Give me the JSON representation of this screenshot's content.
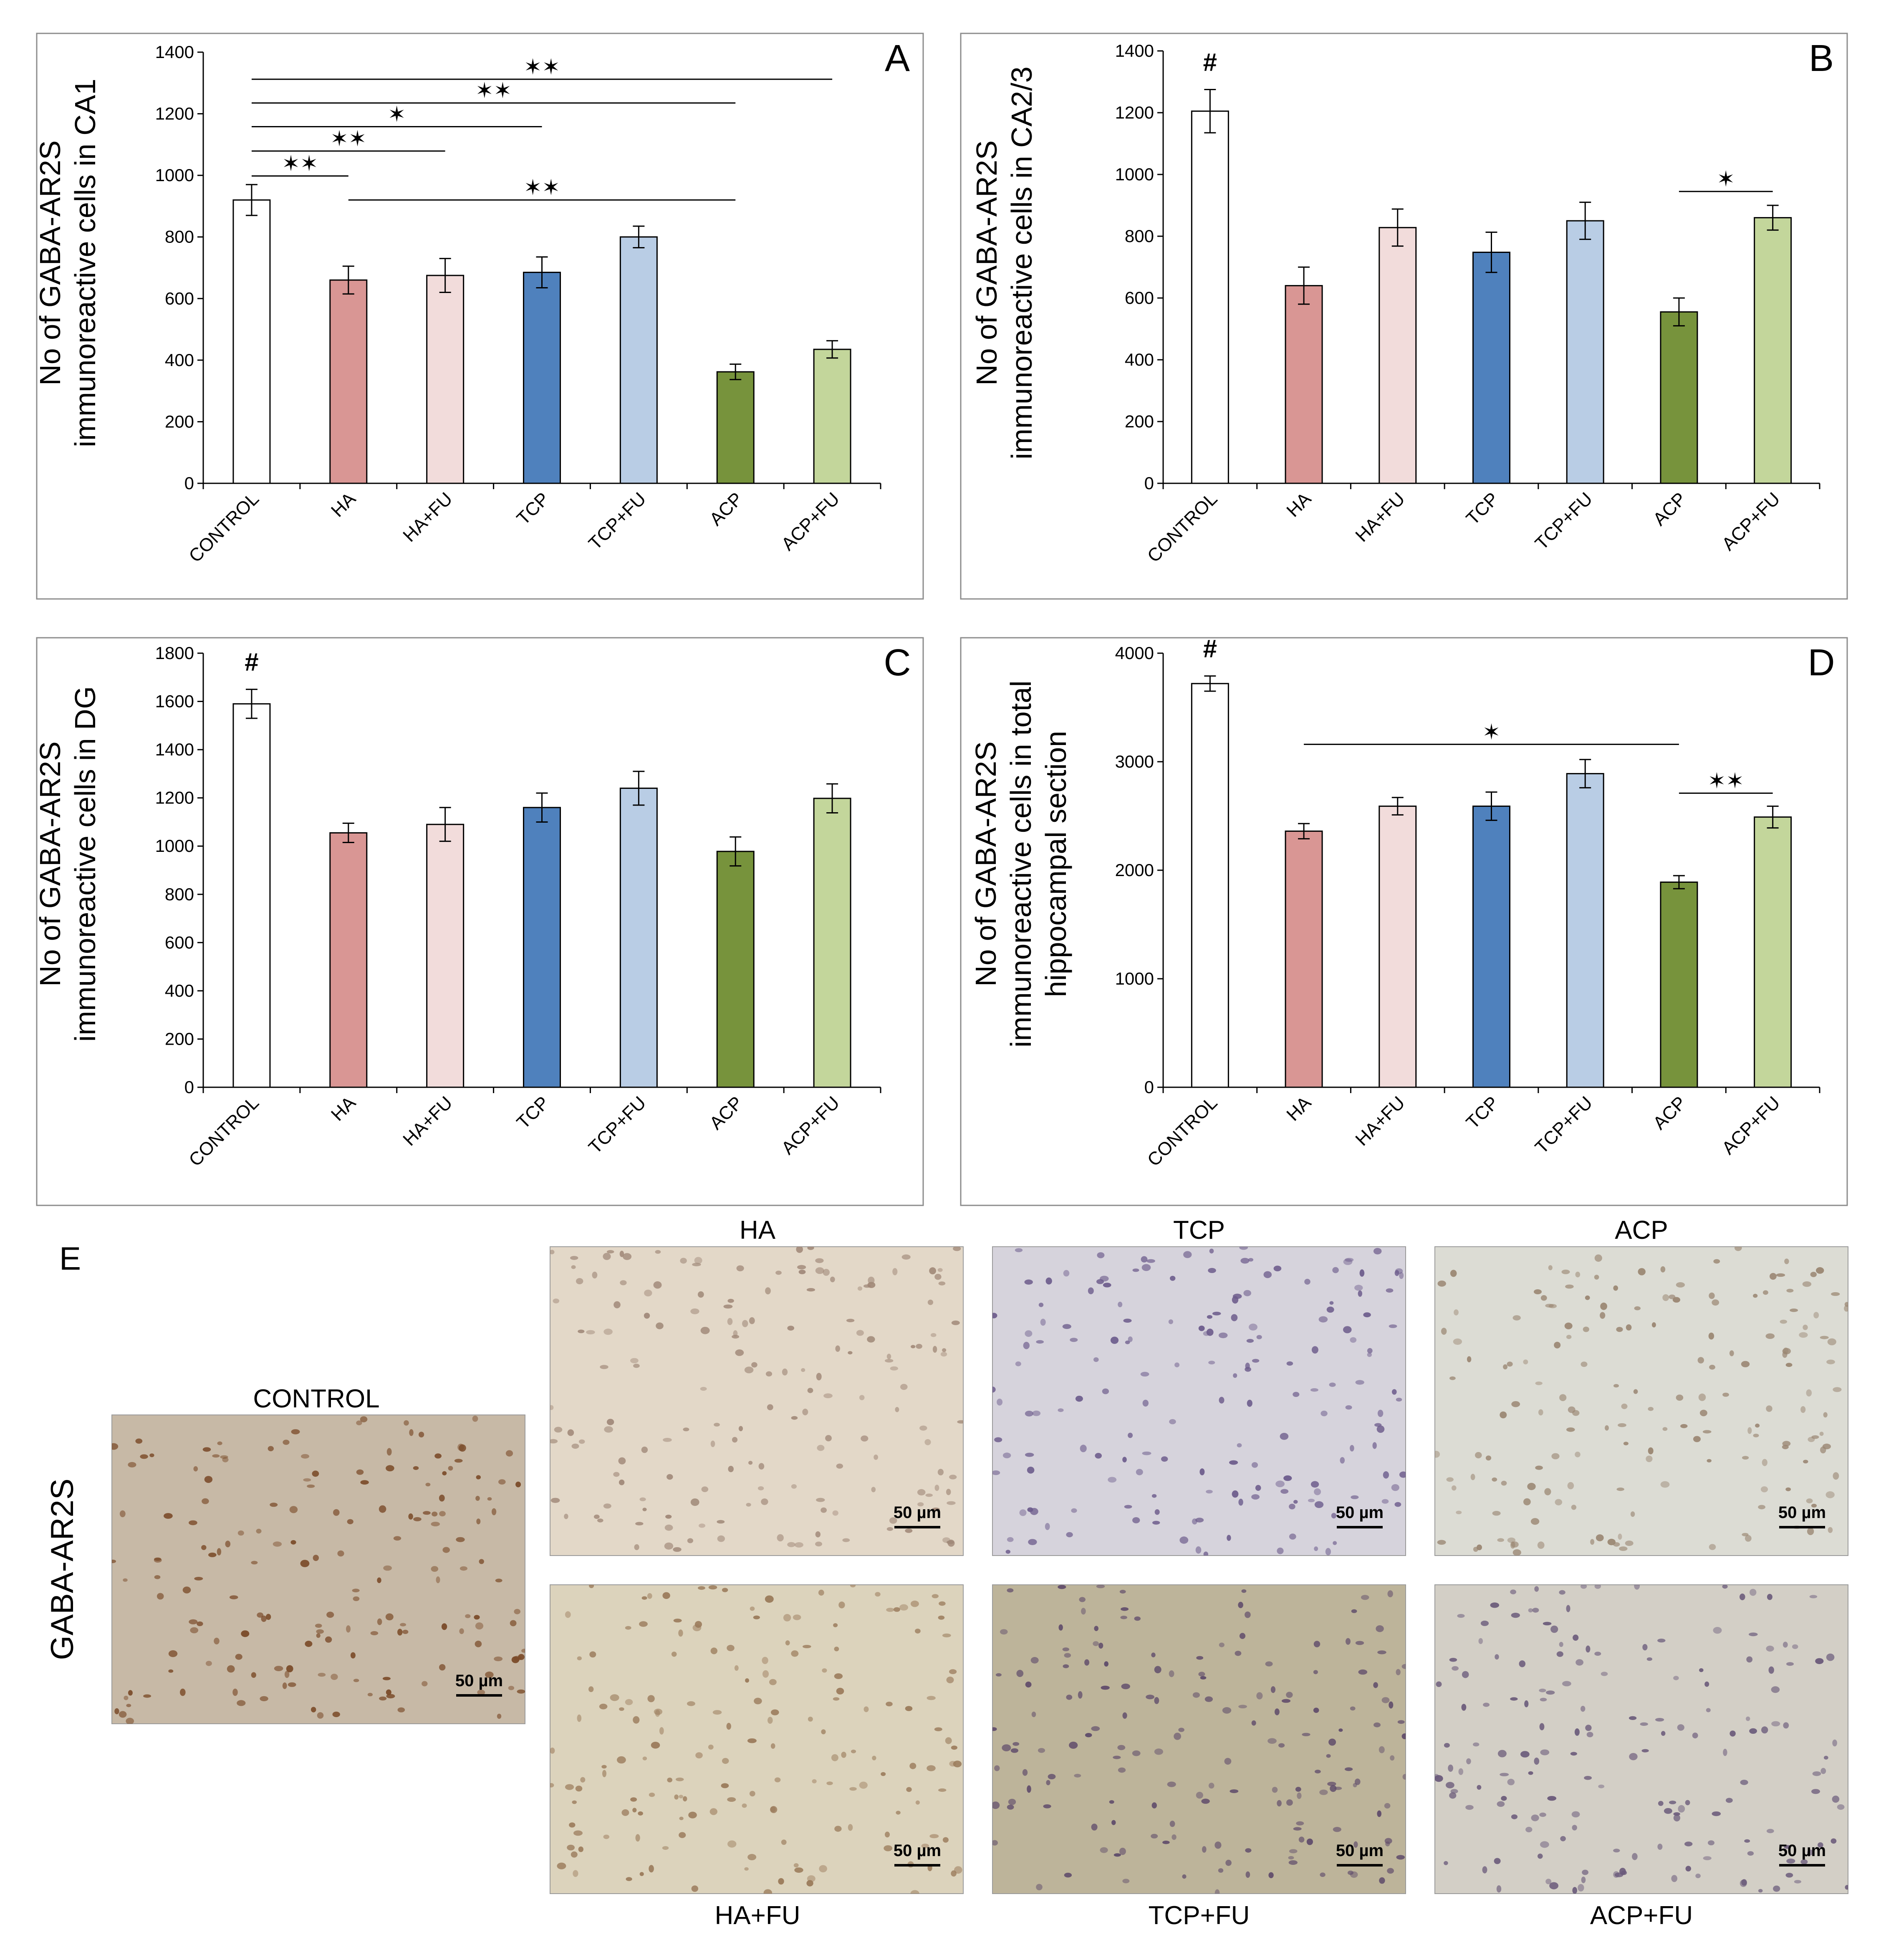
{
  "chart_data": [
    {
      "panel": "A",
      "type": "bar",
      "ylabel_lines": [
        "No of GABA-AR2S",
        "immunoreactive cells in CA1"
      ],
      "categories": [
        "CONTROL",
        "HA",
        "HA+FU",
        "TCP",
        "TCP+FU",
        "ACP",
        "ACP+FU"
      ],
      "values": [
        920,
        660,
        675,
        685,
        800,
        362,
        435
      ],
      "errors": [
        50,
        45,
        55,
        50,
        35,
        25,
        28
      ],
      "yticks": [
        "0",
        "200",
        "400",
        "600",
        "800",
        "1000",
        "1200",
        "1400"
      ],
      "ylim": [
        0,
        1400
      ],
      "grid": false,
      "annotations": [
        {
          "label": "✶✶",
          "from": "CONTROL",
          "to": "ACP+FU",
          "y": 1312
        },
        {
          "label": "✶✶",
          "from": "CONTROL",
          "to": "ACP",
          "y": 1235
        },
        {
          "label": "✶",
          "from": "CONTROL",
          "to": "TCP",
          "y": 1158
        },
        {
          "label": "✶✶",
          "from": "CONTROL",
          "to": "HA+FU",
          "y": 1079
        },
        {
          "label": "✶✶",
          "from": "CONTROL",
          "to": "HA",
          "y": 998
        },
        {
          "label": "✶✶",
          "from": "HA",
          "to": "ACP",
          "y": 920
        }
      ]
    },
    {
      "panel": "B",
      "type": "bar",
      "ylabel_lines": [
        "No of GABA-AR2S",
        "immunoreactive cells in CA2/3"
      ],
      "categories": [
        "CONTROL",
        "HA",
        "HA+FU",
        "TCP",
        "TCP+FU",
        "ACP",
        "ACP+FU"
      ],
      "values": [
        1205,
        640,
        828,
        748,
        850,
        555,
        860
      ],
      "errors": [
        70,
        60,
        60,
        65,
        60,
        45,
        40
      ],
      "yticks": [
        "0",
        "200",
        "400",
        "600",
        "800",
        "1000",
        "1200",
        "1400"
      ],
      "ylim": [
        0,
        1400
      ],
      "grid": false,
      "markers": [
        {
          "label": "#",
          "at": "CONTROL"
        }
      ],
      "annotations": [
        {
          "label": "✶",
          "from": "ACP",
          "to": "ACP+FU",
          "y": 945
        }
      ]
    },
    {
      "panel": "C",
      "type": "bar",
      "ylabel_lines": [
        "No of GABA-AR2S",
        "immunoreactive cells in DG"
      ],
      "categories": [
        "CONTROL",
        "HA",
        "HA+FU",
        "TCP",
        "TCP+FU",
        "ACP",
        "ACP+FU"
      ],
      "values": [
        1590,
        1055,
        1090,
        1160,
        1240,
        978,
        1198
      ],
      "errors": [
        60,
        40,
        70,
        60,
        70,
        60,
        60
      ],
      "yticks": [
        "0",
        "200",
        "400",
        "600",
        "800",
        "1000",
        "1200",
        "1400",
        "1600",
        "1800"
      ],
      "ylim": [
        0,
        1800
      ],
      "grid": false,
      "markers": [
        {
          "label": "#",
          "at": "CONTROL"
        }
      ],
      "annotations": []
    },
    {
      "panel": "D",
      "type": "bar",
      "ylabel_lines": [
        "No of GABA-AR2S",
        "immunoreactive cells in total",
        "hippocampal section"
      ],
      "categories": [
        "CONTROL",
        "HA",
        "HA+FU",
        "TCP",
        "TCP+FU",
        "ACP",
        "ACP+FU"
      ],
      "values": [
        3720,
        2360,
        2590,
        2590,
        2890,
        1890,
        2490
      ],
      "errors": [
        70,
        70,
        80,
        130,
        130,
        60,
        100
      ],
      "yticks": [
        "0",
        "1000",
        "2000",
        "3000",
        "4000"
      ],
      "ylim": [
        0,
        4000
      ],
      "grid": false,
      "markers": [
        {
          "label": "#",
          "at": "CONTROL"
        }
      ],
      "annotations": [
        {
          "label": "✶",
          "from": "HA",
          "to": "ACP",
          "y": 3160
        },
        {
          "label": "✶✶",
          "from": "ACP",
          "to": "ACP+FU",
          "y": 2710
        }
      ]
    }
  ],
  "series_colors": [
    "#ffffff",
    "#d99694",
    "#f2dcdb",
    "#4f81bd",
    "#b9cde5",
    "#77933c",
    "#c3d69b"
  ],
  "panel_e": {
    "label": "E",
    "row_label": "GABA-AR2S",
    "scale_bar": "50 µm",
    "images": [
      {
        "title": "CONTROL",
        "bg": "#c7b9a6",
        "cell": "#7a4a28"
      },
      {
        "title": "HA",
        "bg": "#e3d8c8",
        "cell": "#a08878"
      },
      {
        "title": "TCP",
        "bg": "#d6d3dc",
        "cell": "#6d5c8c"
      },
      {
        "title": "ACP",
        "bg": "#dcdcd4",
        "cell": "#9a8672"
      },
      {
        "title": "HA+FU",
        "bg": "#dcd3bc",
        "cell": "#9a7a5a"
      },
      {
        "title": "TCP+FU",
        "bg": "#bdb49a",
        "cell": "#5e4a6a"
      },
      {
        "title": "ACP+FU",
        "bg": "#d3cfc6",
        "cell": "#6a5a7a"
      }
    ]
  }
}
